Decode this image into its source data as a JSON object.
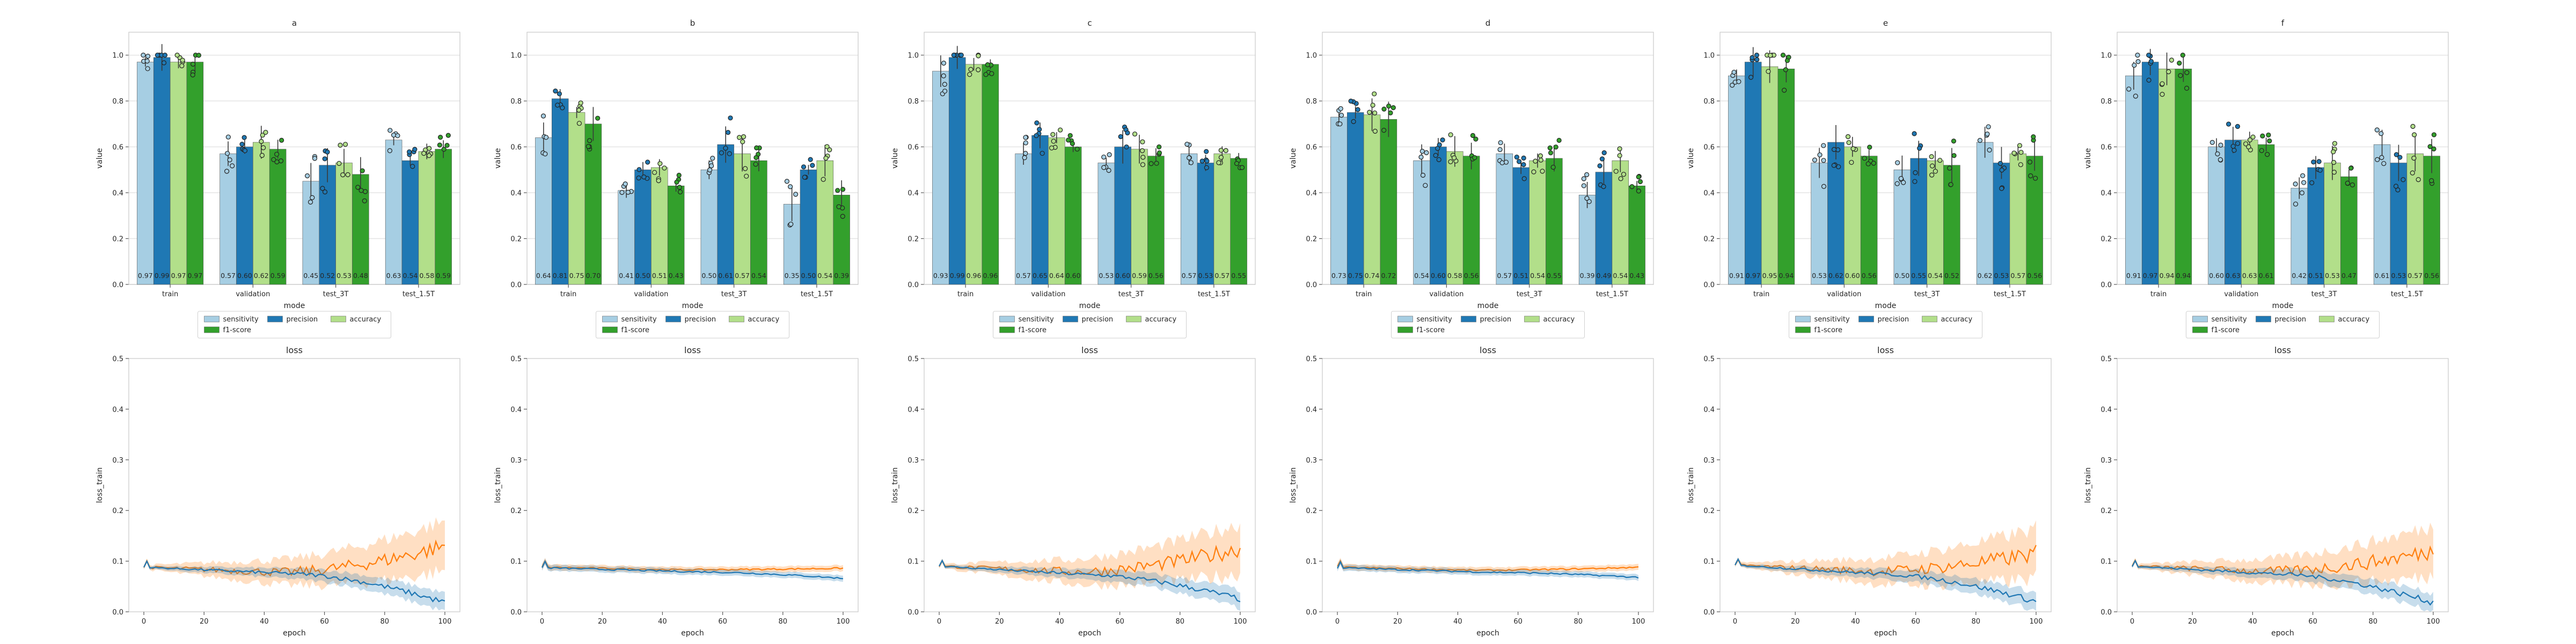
{
  "figure": {
    "bar_series_colors": {
      "sensitivity": "#a6cee3",
      "precision": "#1f78b4",
      "accuracy": "#b2df8a",
      "f1-score": "#33a02c"
    },
    "loss_colors": {
      "loss_train": "#1f77b4",
      "loss_val": "#ff7f0e"
    }
  },
  "chart_data": [
    {
      "type": "bar",
      "title": "a",
      "xlabel": "mode",
      "ylabel": "value",
      "ylim": [
        0,
        1.1
      ],
      "yticks": [
        "0.0",
        "0.2",
        "0.4",
        "0.6",
        "0.8",
        "1.0"
      ],
      "grid": true,
      "legend_position": "bottom-center",
      "categories": [
        "train",
        "validation",
        "test_3T",
        "test_1.5T"
      ],
      "series": [
        {
          "name": "sensitivity",
          "values": [
            0.97,
            0.57,
            0.45,
            0.63
          ],
          "labels": [
            "0.97",
            "0.57",
            "0.45",
            "0.63"
          ]
        },
        {
          "name": "precision",
          "values": [
            0.99,
            0.6,
            0.52,
            0.54
          ],
          "labels": [
            "0.99",
            "0.60",
            "0.52",
            "0.54"
          ]
        },
        {
          "name": "accuracy",
          "values": [
            0.97,
            0.62,
            0.53,
            0.58
          ],
          "labels": [
            "0.97",
            "0.62",
            "0.53",
            "0.58"
          ]
        },
        {
          "name": "f1-score",
          "values": [
            0.97,
            0.59,
            0.48,
            0.59
          ],
          "labels": [
            "0.97",
            "0.59",
            "0.48",
            "0.59"
          ]
        }
      ]
    },
    {
      "type": "bar",
      "title": "b",
      "xlabel": "mode",
      "ylabel": "value",
      "ylim": [
        0,
        1.1
      ],
      "yticks": [
        "0.0",
        "0.2",
        "0.4",
        "0.6",
        "0.8",
        "1.0"
      ],
      "grid": true,
      "legend_position": "bottom-center",
      "categories": [
        "train",
        "validation",
        "test_3T",
        "test_1.5T"
      ],
      "series": [
        {
          "name": "sensitivity",
          "values": [
            0.64,
            0.41,
            0.5,
            0.35
          ],
          "labels": [
            "0.64",
            "0.41",
            "0.50",
            "0.35"
          ]
        },
        {
          "name": "precision",
          "values": [
            0.81,
            0.5,
            0.61,
            0.5
          ],
          "labels": [
            "0.81",
            "0.50",
            "0.61",
            "0.50"
          ]
        },
        {
          "name": "accuracy",
          "values": [
            0.75,
            0.51,
            0.57,
            0.54
          ],
          "labels": [
            "0.75",
            "0.51",
            "0.57",
            "0.54"
          ]
        },
        {
          "name": "f1-score",
          "values": [
            0.7,
            0.43,
            0.54,
            0.39
          ],
          "labels": [
            "0.70",
            "0.43",
            "0.54",
            "0.39"
          ]
        }
      ]
    },
    {
      "type": "bar",
      "title": "c",
      "xlabel": "mode",
      "ylabel": "value",
      "ylim": [
        0,
        1.1
      ],
      "yticks": [
        "0.0",
        "0.2",
        "0.4",
        "0.6",
        "0.8",
        "1.0"
      ],
      "grid": true,
      "legend_position": "bottom-center",
      "categories": [
        "train",
        "validation",
        "test_3T",
        "test_1.5T"
      ],
      "series": [
        {
          "name": "sensitivity",
          "values": [
            0.93,
            0.57,
            0.53,
            0.57
          ],
          "labels": [
            "0.93",
            "0.57",
            "0.53",
            "0.57"
          ]
        },
        {
          "name": "precision",
          "values": [
            0.99,
            0.65,
            0.6,
            0.53
          ],
          "labels": [
            "0.99",
            "0.65",
            "0.60",
            "0.53"
          ]
        },
        {
          "name": "accuracy",
          "values": [
            0.96,
            0.64,
            0.59,
            0.57
          ],
          "labels": [
            "0.96",
            "0.64",
            "0.59",
            "0.57"
          ]
        },
        {
          "name": "f1-score",
          "values": [
            0.96,
            0.6,
            0.56,
            0.55
          ],
          "labels": [
            "0.96",
            "0.60",
            "0.56",
            "0.55"
          ]
        }
      ]
    },
    {
      "type": "bar",
      "title": "d",
      "xlabel": "mode",
      "ylabel": "value",
      "ylim": [
        0,
        1.1
      ],
      "yticks": [
        "0.0",
        "0.2",
        "0.4",
        "0.6",
        "0.8",
        "1.0"
      ],
      "grid": true,
      "legend_position": "bottom-center",
      "categories": [
        "train",
        "validation",
        "test_3T",
        "test_1.5T"
      ],
      "series": [
        {
          "name": "sensitivity",
          "values": [
            0.73,
            0.54,
            0.57,
            0.39
          ],
          "labels": [
            "0.73",
            "0.54",
            "0.57",
            "0.39"
          ]
        },
        {
          "name": "precision",
          "values": [
            0.75,
            0.6,
            0.51,
            0.49
          ],
          "labels": [
            "0.75",
            "0.60",
            "0.51",
            "0.49"
          ]
        },
        {
          "name": "accuracy",
          "values": [
            0.74,
            0.58,
            0.54,
            0.54
          ],
          "labels": [
            "0.74",
            "0.58",
            "0.54",
            "0.54"
          ]
        },
        {
          "name": "f1-score",
          "values": [
            0.72,
            0.56,
            0.55,
            0.43
          ],
          "labels": [
            "0.72",
            "0.56",
            "0.55",
            "0.43"
          ]
        }
      ]
    },
    {
      "type": "bar",
      "title": "e",
      "xlabel": "mode",
      "ylabel": "value",
      "ylim": [
        0,
        1.1
      ],
      "yticks": [
        "0.0",
        "0.2",
        "0.4",
        "0.6",
        "0.8",
        "1.0"
      ],
      "grid": true,
      "legend_position": "bottom-center",
      "categories": [
        "train",
        "validation",
        "test_3T",
        "test_1.5T"
      ],
      "series": [
        {
          "name": "sensitivity",
          "values": [
            0.91,
            0.53,
            0.5,
            0.62
          ],
          "labels": [
            "0.91",
            "0.53",
            "0.50",
            "0.62"
          ]
        },
        {
          "name": "precision",
          "values": [
            0.97,
            0.62,
            0.55,
            0.53
          ],
          "labels": [
            "0.97",
            "0.62",
            "0.55",
            "0.53"
          ]
        },
        {
          "name": "accuracy",
          "values": [
            0.95,
            0.6,
            0.54,
            0.57
          ],
          "labels": [
            "0.95",
            "0.60",
            "0.54",
            "0.57"
          ]
        },
        {
          "name": "f1-score",
          "values": [
            0.94,
            0.56,
            0.52,
            0.56
          ],
          "labels": [
            "0.94",
            "0.56",
            "0.52",
            "0.56"
          ]
        }
      ]
    },
    {
      "type": "bar",
      "title": "f",
      "xlabel": "mode",
      "ylabel": "value",
      "ylim": [
        0,
        1.1
      ],
      "yticks": [
        "0.0",
        "0.2",
        "0.4",
        "0.6",
        "0.8",
        "1.0"
      ],
      "grid": true,
      "legend_position": "bottom-center",
      "categories": [
        "train",
        "validation",
        "test_3T",
        "test_1.5T"
      ],
      "series": [
        {
          "name": "sensitivity",
          "values": [
            0.91,
            0.6,
            0.42,
            0.61
          ],
          "labels": [
            "0.91",
            "0.60",
            "0.42",
            "0.61"
          ]
        },
        {
          "name": "precision",
          "values": [
            0.97,
            0.63,
            0.51,
            0.53
          ],
          "labels": [
            "0.97",
            "0.63",
            "0.51",
            "0.53"
          ]
        },
        {
          "name": "accuracy",
          "values": [
            0.94,
            0.63,
            0.53,
            0.57
          ],
          "labels": [
            "0.94",
            "0.63",
            "0.53",
            "0.57"
          ]
        },
        {
          "name": "f1-score",
          "values": [
            0.94,
            0.61,
            0.47,
            0.56
          ],
          "labels": [
            "0.94",
            "0.61",
            "0.47",
            "0.56"
          ]
        }
      ]
    },
    {
      "type": "line",
      "title": "loss",
      "xlabel": "epoch",
      "ylabel": "loss_train",
      "xlim": [
        -5,
        105
      ],
      "ylim": [
        0,
        0.5
      ],
      "xticks": [
        "0",
        "20",
        "40",
        "60",
        "80",
        "100"
      ],
      "yticks": [
        "0.0",
        "0.1",
        "0.2",
        "0.3",
        "0.4",
        "0.5"
      ],
      "curve_profile": {
        "train": {
          "start": 0.088,
          "mid": 0.075,
          "end": 0.018
        },
        "val": {
          "start": 0.088,
          "min": 0.078,
          "end": 0.13
        },
        "band_width": "wide"
      }
    },
    {
      "type": "line",
      "title": "loss",
      "xlabel": "epoch",
      "ylabel": "loss_train",
      "xlim": [
        -5,
        105
      ],
      "ylim": [
        0,
        0.5
      ],
      "xticks": [
        "0",
        "20",
        "40",
        "60",
        "80",
        "100"
      ],
      "yticks": [
        "0.0",
        "0.1",
        "0.2",
        "0.3",
        "0.4",
        "0.5"
      ],
      "curve_profile": {
        "train": {
          "start": 0.087,
          "mid": 0.079,
          "end": 0.066
        },
        "val": {
          "start": 0.088,
          "min": 0.083,
          "end": 0.086
        },
        "band_width": "narrow"
      }
    },
    {
      "type": "line",
      "title": "loss",
      "xlabel": "epoch",
      "ylabel": "loss_train",
      "xlim": [
        -5,
        105
      ],
      "ylim": [
        0,
        0.5
      ],
      "xticks": [
        "0",
        "20",
        "40",
        "60",
        "80",
        "100"
      ],
      "yticks": [
        "0.0",
        "0.1",
        "0.2",
        "0.3",
        "0.4",
        "0.5"
      ],
      "curve_profile": {
        "train": {
          "start": 0.09,
          "mid": 0.073,
          "end": 0.025
        },
        "val": {
          "start": 0.09,
          "min": 0.079,
          "end": 0.125
        },
        "band_width": "wide"
      }
    },
    {
      "type": "line",
      "title": "loss",
      "xlabel": "epoch",
      "ylabel": "loss_train",
      "xlim": [
        -5,
        105
      ],
      "ylim": [
        0,
        0.5
      ],
      "xticks": [
        "0",
        "20",
        "40",
        "60",
        "80",
        "100"
      ],
      "yticks": [
        "0.0",
        "0.1",
        "0.2",
        "0.3",
        "0.4",
        "0.5"
      ],
      "curve_profile": {
        "train": {
          "start": 0.087,
          "mid": 0.078,
          "end": 0.068
        },
        "val": {
          "start": 0.088,
          "min": 0.082,
          "end": 0.088
        },
        "band_width": "narrow"
      }
    },
    {
      "type": "line",
      "title": "loss",
      "xlabel": "epoch",
      "ylabel": "loss_train",
      "xlim": [
        -5,
        105
      ],
      "ylim": [
        0,
        0.5
      ],
      "xticks": [
        "0",
        "20",
        "40",
        "60",
        "80",
        "100"
      ],
      "yticks": [
        "0.0",
        "0.1",
        "0.2",
        "0.3",
        "0.4",
        "0.5"
      ],
      "curve_profile": {
        "train": {
          "start": 0.092,
          "mid": 0.074,
          "end": 0.02
        },
        "val": {
          "start": 0.092,
          "min": 0.08,
          "end": 0.115
        },
        "band_width": "wide"
      }
    },
    {
      "type": "line",
      "title": "loss",
      "xlabel": "epoch",
      "ylabel": "loss_train",
      "xlim": [
        -5,
        105
      ],
      "ylim": [
        0,
        0.5
      ],
      "xticks": [
        "0",
        "20",
        "40",
        "60",
        "80",
        "100"
      ],
      "yticks": [
        "0.0",
        "0.1",
        "0.2",
        "0.3",
        "0.4",
        "0.5"
      ],
      "curve_profile": {
        "train": {
          "start": 0.09,
          "mid": 0.074,
          "end": 0.018
        },
        "val": {
          "start": 0.09,
          "min": 0.08,
          "end": 0.12
        },
        "band_width": "wide"
      }
    }
  ]
}
